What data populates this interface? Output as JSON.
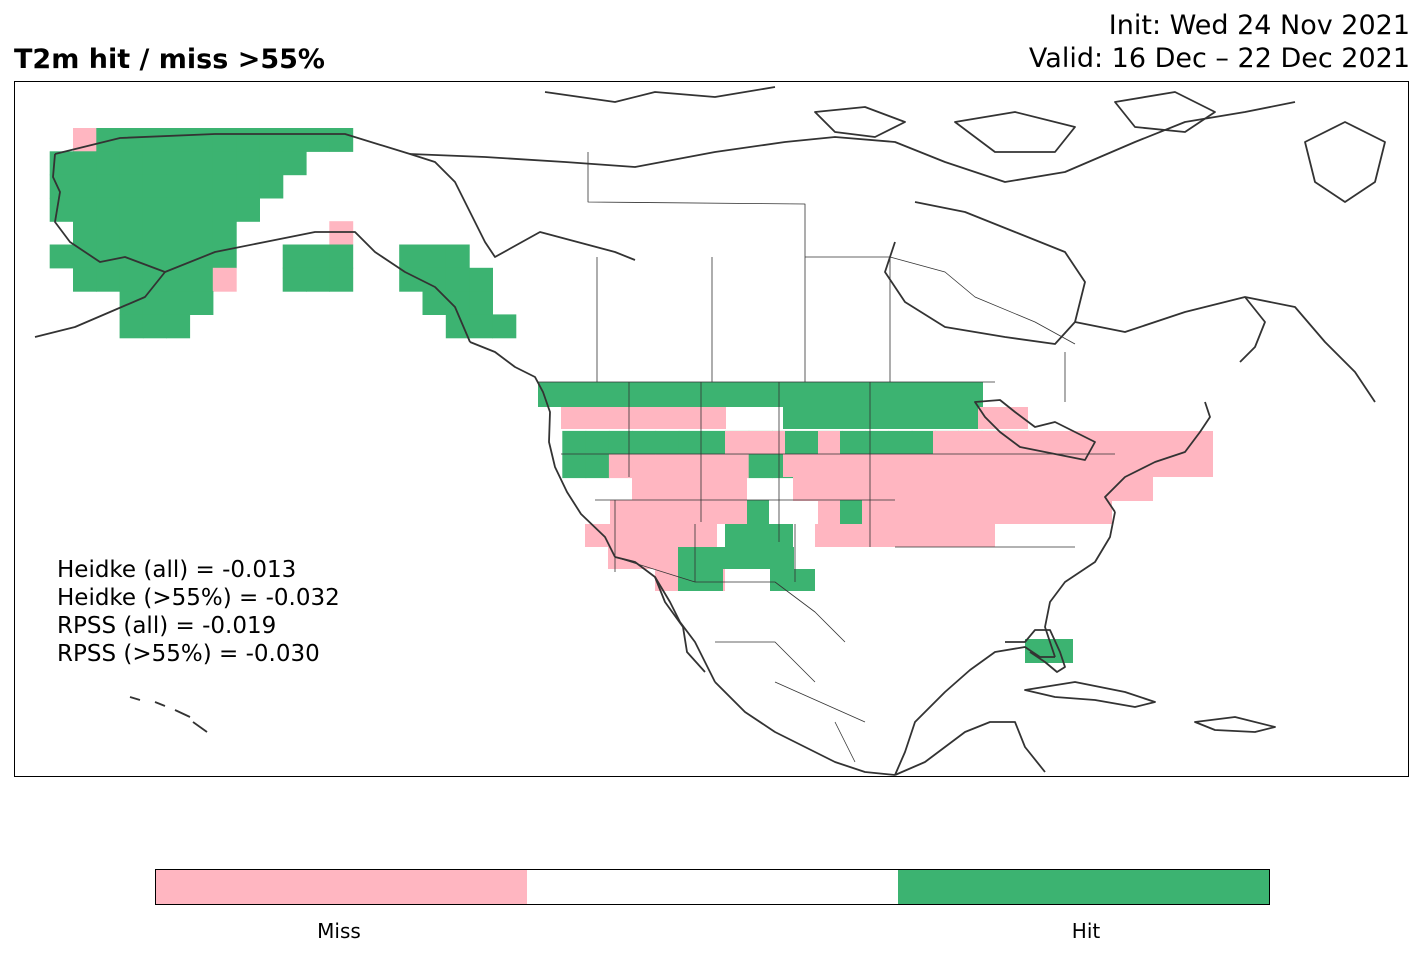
{
  "header": {
    "title": "T2m hit / miss  >55%",
    "init": "Init: Wed 24 Nov 2021",
    "valid": "Valid: 16 Dec – 22 Dec 2021"
  },
  "stats": [
    "Heidke (all) = -0.013",
    "Heidke (>55%) = -0.032",
    "RPSS (all) = -0.019",
    "RPSS (>55%) = -0.030"
  ],
  "colors": {
    "miss": "#ffb6c1",
    "neutral": "#ffffff",
    "hit": "#3cb371",
    "coast": "#333333"
  },
  "legend": {
    "miss_label": "Miss",
    "hit_label": "Hit"
  }
}
